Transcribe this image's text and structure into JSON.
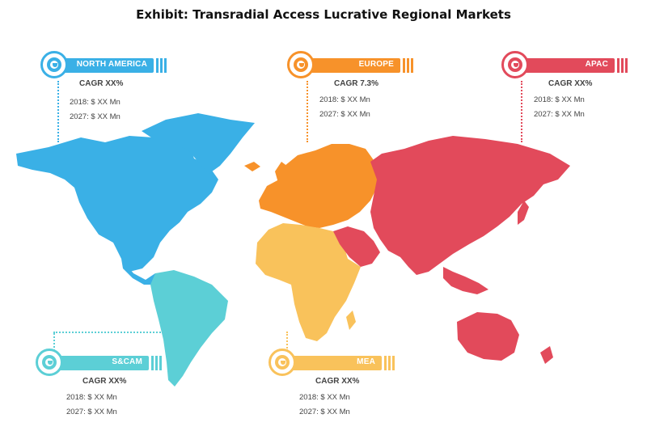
{
  "title": "Exhibit: Transradial Access Lucrative Regional Markets",
  "colors": {
    "north_america": "#3ab0e6",
    "europe": "#f7922a",
    "apac": "#e24a5b",
    "scam": "#5ccfd6",
    "mea": "#f9c25b"
  },
  "regions": {
    "north_america": {
      "name": "NORTH AMERICA",
      "cagr": "CAGR XX%",
      "y2018": "2018: $ XX Mn",
      "y2027": "2027: $ XX Mn",
      "icon": "target-icon"
    },
    "europe": {
      "name": "EUROPE",
      "cagr": "CAGR 7.3%",
      "y2018": "2018: $ XX Mn",
      "y2027": "2027: $ XX Mn",
      "icon": "target-icon"
    },
    "apac": {
      "name": "APAC",
      "cagr": "CAGR XX%",
      "y2018": "2018: $ XX Mn",
      "y2027": "2027: $ XX Mn",
      "icon": "target-icon"
    },
    "scam": {
      "name": "S&CAM",
      "cagr": "CAGR XX%",
      "y2018": "2018: $ XX Mn",
      "y2027": "2027: $ XX Mn",
      "icon": "target-icon"
    },
    "mea": {
      "name": "MEA",
      "cagr": "CAGR XX%",
      "y2018": "2018: $ XX Mn",
      "y2027": "2027: $ XX Mn",
      "icon": "target-icon"
    }
  }
}
